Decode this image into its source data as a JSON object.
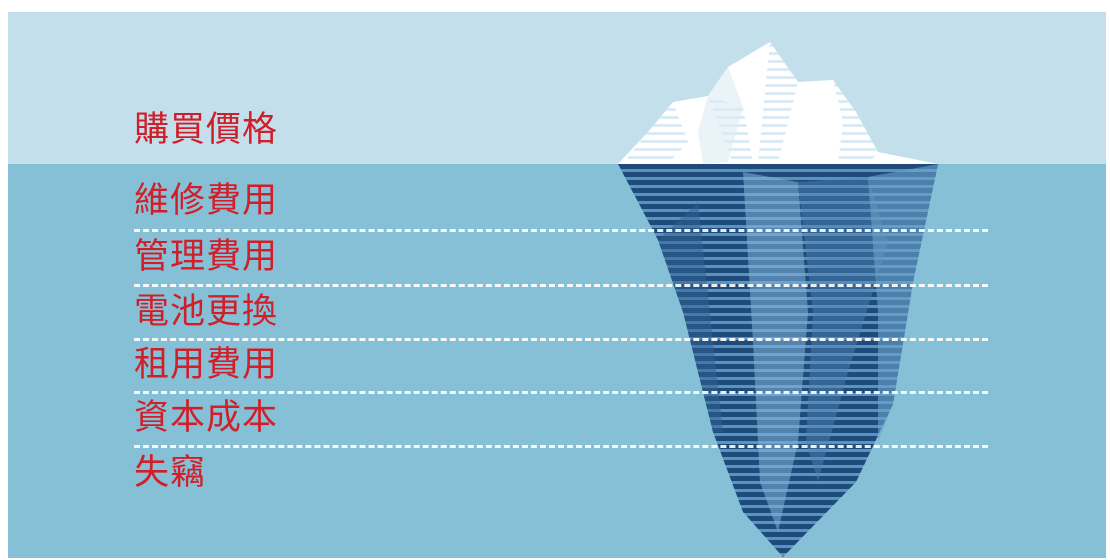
{
  "colors": {
    "sky": "#c4dfec",
    "sea": "#86c0d6",
    "label": "#d11f2a",
    "ice_top": "#ffffff",
    "ice_deep": "#1f4b7a",
    "ice_mid": "#4f86b5",
    "ice_light": "#7fb2d8"
  },
  "labels": {
    "above_water": "購買價格",
    "below_water": [
      "維修費用",
      "管理費用",
      "電池更換",
      "租用費用",
      "資本成本",
      "失竊"
    ]
  }
}
